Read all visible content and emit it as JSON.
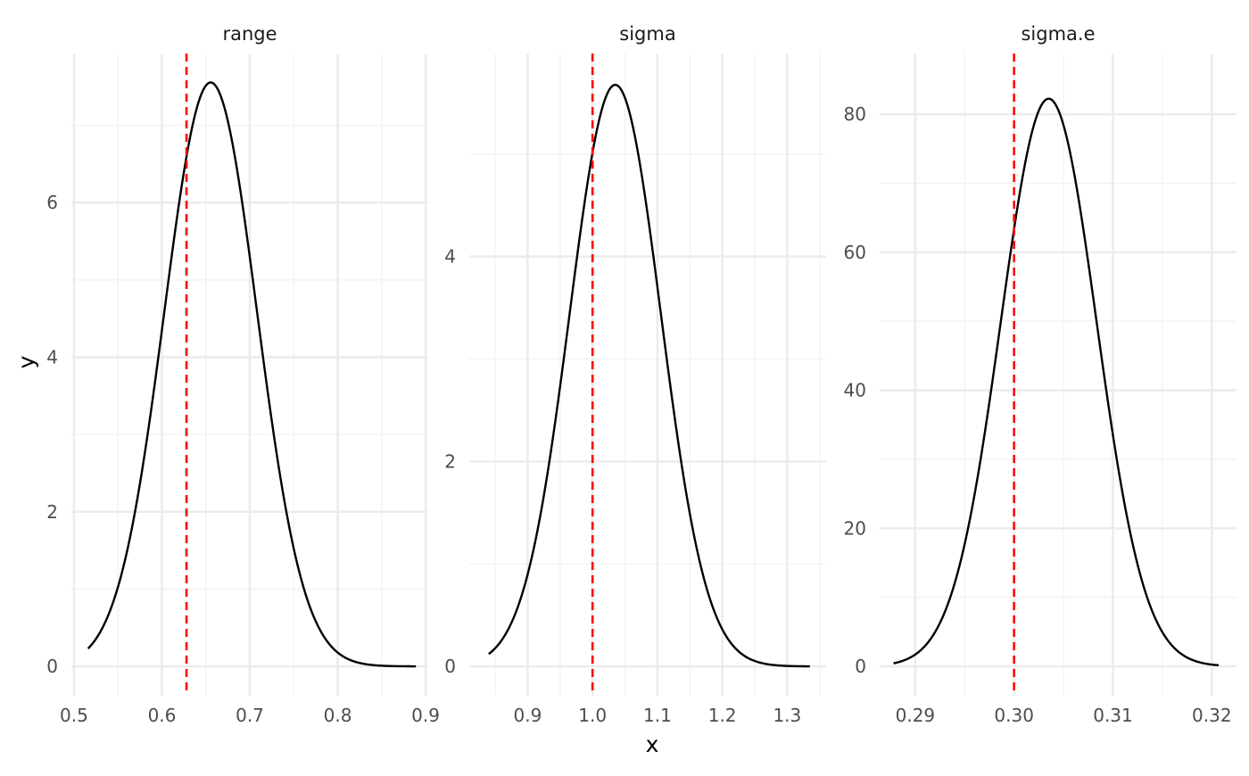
{
  "chart_data": {
    "type": "line",
    "xlabel": "x",
    "ylabel": "y",
    "grid": true,
    "legend": "none",
    "colors": {
      "density": "#000000",
      "reference_line": "#ff0000"
    },
    "panels": [
      {
        "title": "range",
        "xlim": [
          0.497,
          0.903
        ],
        "ylim": [
          -0.38,
          7.93
        ],
        "x_ticks": [
          0.5,
          0.6,
          0.7,
          0.8,
          0.9
        ],
        "x_tick_labels": [
          "0.5",
          "0.6",
          "0.7",
          "0.8",
          "0.9"
        ],
        "y_ticks": [
          0,
          2,
          4,
          6
        ],
        "y_tick_labels": [
          "0",
          "2",
          "4",
          "6"
        ],
        "reference_x": 0.628,
        "density": {
          "mean": 0.6555,
          "sd": 0.0528,
          "scale": 1.0,
          "x_min": 0.516,
          "x_max": 0.889
        }
      },
      {
        "title": "sigma",
        "xlim": [
          0.81,
          1.36
        ],
        "ylim": [
          -0.286,
          5.98
        ],
        "x_ticks": [
          0.9,
          1.0,
          1.1,
          1.2,
          1.3
        ],
        "x_tick_labels": [
          "0.9",
          "1.0",
          "1.1",
          "1.2",
          "1.3"
        ],
        "y_ticks": [
          0,
          2,
          4
        ],
        "y_tick_labels": [
          "0",
          "2",
          "4"
        ],
        "reference_x": 1.0,
        "density": {
          "mean": 1.035,
          "sd": 0.0703,
          "scale": 1.0,
          "x_min": 0.84,
          "x_max": 1.335
        }
      },
      {
        "title": "sigma.e",
        "xlim": [
          0.2864,
          0.3225
        ],
        "ylim": [
          -4.26,
          88.8
        ],
        "x_ticks": [
          0.29,
          0.3,
          0.31,
          0.32
        ],
        "x_tick_labels": [
          "0.29",
          "0.30",
          "0.31",
          "0.32"
        ],
        "y_ticks": [
          0,
          20,
          40,
          60,
          80
        ],
        "y_tick_labels": [
          "0",
          "20",
          "40",
          "60",
          "80"
        ],
        "reference_x": 0.3,
        "density": {
          "mean": 0.3035,
          "sd": 0.00485,
          "scale": 1.0,
          "x_min": 0.2878,
          "x_max": 0.3207
        }
      }
    ]
  }
}
